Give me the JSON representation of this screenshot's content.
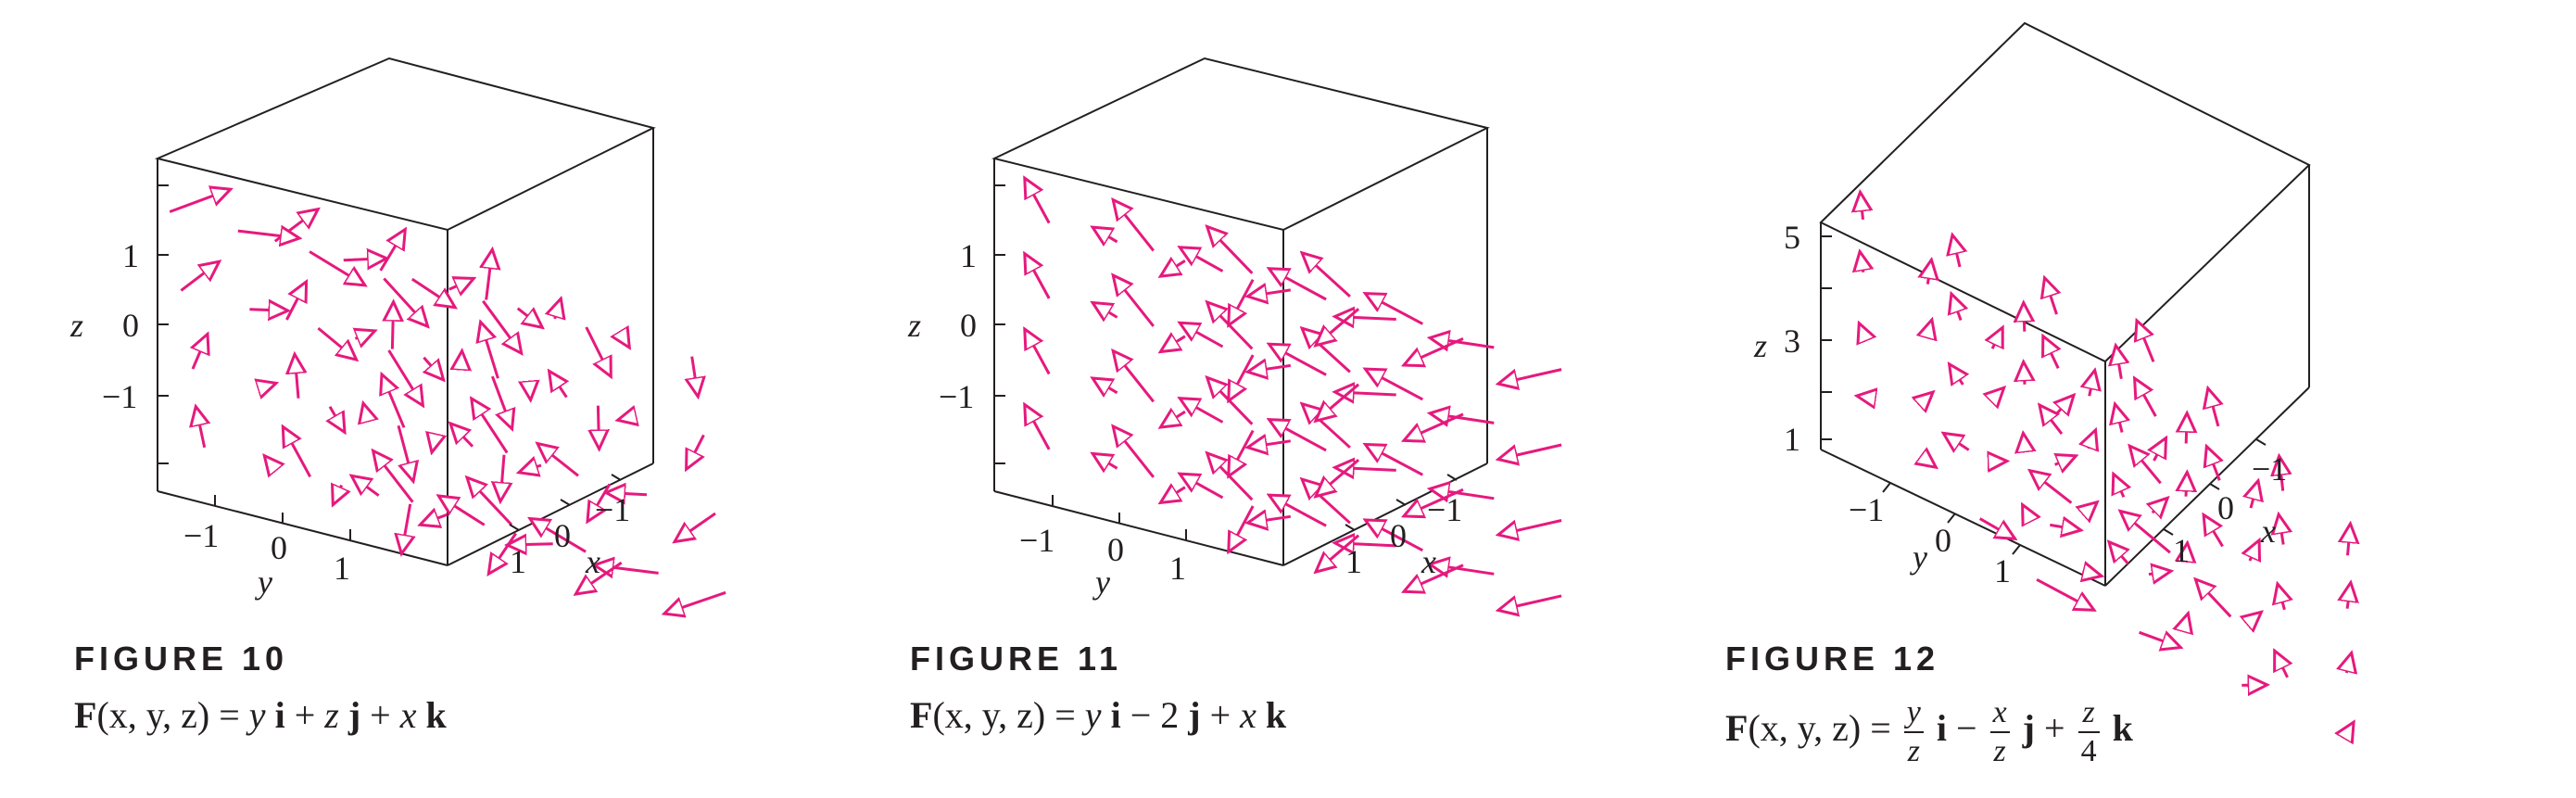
{
  "colors": {
    "arrow": "#e6197d",
    "frame": "#231f20"
  },
  "figures": [
    {
      "id": "fig10",
      "title": "FIGURE 10",
      "formula": {
        "lhs_F": "F",
        "lhs_args": "(x, y, z)",
        "eq": "=",
        "t1": "y",
        "i": "i",
        "op1": "+",
        "t2": "z",
        "j": "j",
        "op2": "+",
        "t3": "x",
        "k": "k"
      },
      "z_axis_label": "z",
      "z_ticks": [
        "1",
        "0",
        "−1"
      ],
      "y_axis_label": "y",
      "y_ticks": [
        "−1",
        "0",
        "1"
      ],
      "x_axis_label": "x",
      "x_ticks": [
        "1",
        "0",
        "−1"
      ]
    },
    {
      "id": "fig11",
      "title": "FIGURE 11",
      "formula": {
        "lhs_F": "F",
        "lhs_args": "(x, y, z)",
        "eq": "=",
        "t1": "y",
        "i": "i",
        "op1": "−",
        "t2": "2",
        "j": "j",
        "op2": "+",
        "t3": "x",
        "k": "k"
      },
      "z_axis_label": "z",
      "z_ticks": [
        "1",
        "0",
        "−1"
      ],
      "y_axis_label": "y",
      "y_ticks": [
        "−1",
        "0",
        "1"
      ],
      "x_axis_label": "x",
      "x_ticks": [
        "1",
        "0",
        "−1"
      ]
    },
    {
      "id": "fig12",
      "title": "FIGURE 12",
      "formula": {
        "lhs_F": "F",
        "lhs_args": "(x, y, z)",
        "eq": "=",
        "f1_num": "y",
        "f1_den": "z",
        "i": "i",
        "op1": "−",
        "f2_num": "x",
        "f2_den": "z",
        "j": "j",
        "op2": "+",
        "f3_num": "z",
        "f3_den": "4",
        "k": "k"
      },
      "z_axis_label": "z",
      "z_ticks": [
        "5",
        "3",
        "1"
      ],
      "y_axis_label": "y",
      "y_ticks": [
        "−1",
        "0",
        "1"
      ],
      "x_axis_label": "x",
      "x_ticks": [
        "1",
        "0",
        "−1"
      ]
    }
  ]
}
